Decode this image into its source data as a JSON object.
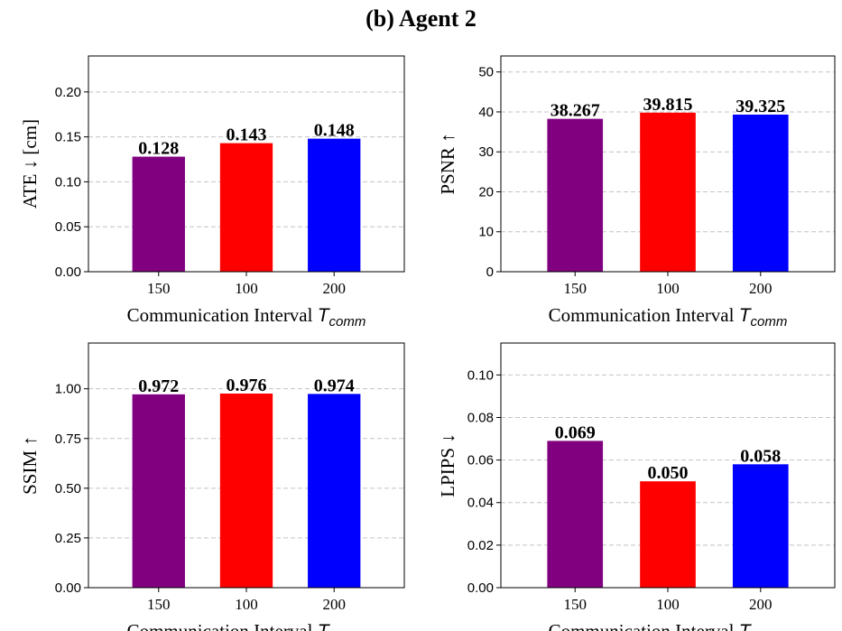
{
  "figure_title": "(b) Agent 2",
  "colors": {
    "bar_colors": [
      "#800080",
      "#ff0000",
      "#0000ff"
    ],
    "grid": "#c4c4c4",
    "axis": "#000000"
  },
  "chart_data": [
    {
      "type": "bar",
      "categories": [
        "150",
        "100",
        "200"
      ],
      "values": [
        0.128,
        0.143,
        0.148
      ],
      "value_labels": [
        "0.128",
        "0.143",
        "0.148"
      ],
      "title": "",
      "ylabel": "ATE ↓  [cm]",
      "xlabel": "Communication Interval",
      "xlabel_symbol": "T",
      "xlabel_subscript": "comm",
      "ylim": [
        0,
        0.24
      ],
      "yticks": [
        0.0,
        0.05,
        0.1,
        0.15,
        0.2
      ],
      "ytick_labels": [
        "0.00",
        "0.05",
        "0.10",
        "0.15",
        "0.20"
      ],
      "grid": true
    },
    {
      "type": "bar",
      "categories": [
        "150",
        "100",
        "200"
      ],
      "values": [
        38.267,
        39.815,
        39.325
      ],
      "value_labels": [
        "38.267",
        "39.815",
        "39.325"
      ],
      "title": "",
      "ylabel": "PSNR ↑",
      "xlabel": "Communication Interval",
      "xlabel_symbol": "T",
      "xlabel_subscript": "comm",
      "ylim": [
        0,
        54
      ],
      "yticks": [
        0,
        10,
        20,
        30,
        40,
        50
      ],
      "ytick_labels": [
        "0",
        "10",
        "20",
        "30",
        "40",
        "50"
      ],
      "grid": true
    },
    {
      "type": "bar",
      "categories": [
        "150",
        "100",
        "200"
      ],
      "values": [
        0.972,
        0.976,
        0.974
      ],
      "value_labels": [
        "0.972",
        "0.976",
        "0.974"
      ],
      "title": "",
      "ylabel": "SSIM ↑",
      "xlabel": "Communication Interval",
      "xlabel_symbol": "T",
      "xlabel_subscript": "comm",
      "ylim": [
        0,
        1.23
      ],
      "yticks": [
        0.0,
        0.25,
        0.5,
        0.75,
        1.0
      ],
      "ytick_labels": [
        "0.00",
        "0.25",
        "0.50",
        "0.75",
        "1.00"
      ],
      "grid": true
    },
    {
      "type": "bar",
      "categories": [
        "150",
        "100",
        "200"
      ],
      "values": [
        0.069,
        0.05,
        0.058
      ],
      "value_labels": [
        "0.069",
        "0.050",
        "0.058"
      ],
      "title": "",
      "ylabel": "LPIPS ↓",
      "xlabel": "Communication Interval",
      "xlabel_symbol": "T",
      "xlabel_subscript": "comm",
      "ylim": [
        0,
        0.115
      ],
      "yticks": [
        0.0,
        0.02,
        0.04,
        0.06,
        0.08,
        0.1
      ],
      "ytick_labels": [
        "0.00",
        "0.02",
        "0.04",
        "0.06",
        "0.08",
        "0.10"
      ],
      "grid": true
    }
  ]
}
